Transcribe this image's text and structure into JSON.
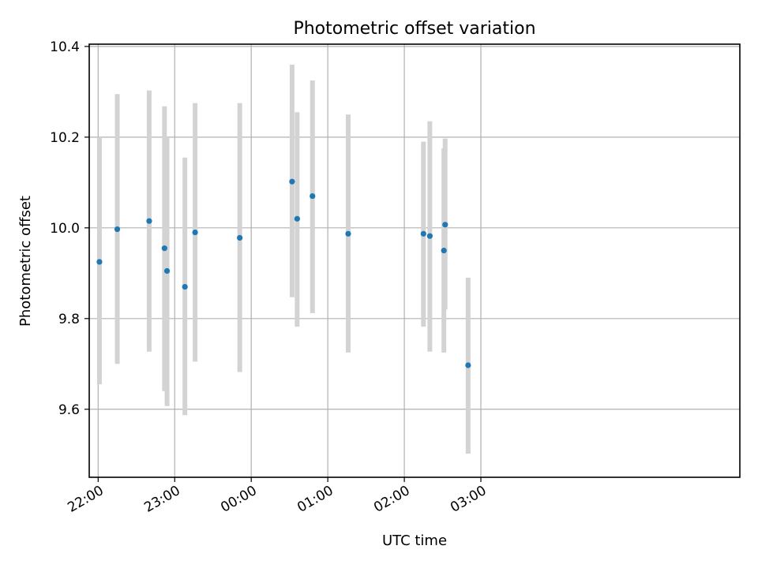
{
  "chart_data": {
    "type": "scatter",
    "title": "Photometric offset variation",
    "xlabel": "UTC time",
    "ylabel": "Photometric offset",
    "x_unit": "minutes_after_22:00",
    "xlim": [
      -7,
      503
    ],
    "ylim": [
      9.45,
      10.405
    ],
    "yticks": [
      9.6,
      9.8,
      10.0,
      10.2,
      10.4
    ],
    "ytick_labels": [
      "9.6",
      "9.8",
      "10.0",
      "10.2",
      "10.4"
    ],
    "xticks": [
      0,
      60,
      120,
      180,
      240,
      300
    ],
    "xtick_labels": [
      "22:00",
      "23:00",
      "00:00",
      "01:00",
      "02:00",
      "03:00"
    ],
    "grid": true,
    "colors": {
      "point": "#1f77b4",
      "errorbar": "#d3d3d3"
    },
    "points": [
      {
        "x": 1,
        "y": 9.925,
        "ylo": 9.655,
        "yhi": 10.2
      },
      {
        "x": 15,
        "y": 9.997,
        "ylo": 9.7,
        "yhi": 10.295
      },
      {
        "x": 40,
        "y": 10.015,
        "ylo": 9.727,
        "yhi": 10.303
      },
      {
        "x": 52,
        "y": 9.955,
        "ylo": 9.64,
        "yhi": 10.268
      },
      {
        "x": 54,
        "y": 9.905,
        "ylo": 9.607,
        "yhi": 10.198
      },
      {
        "x": 68,
        "y": 9.87,
        "ylo": 9.587,
        "yhi": 10.155
      },
      {
        "x": 76,
        "y": 9.99,
        "ylo": 9.705,
        "yhi": 10.275
      },
      {
        "x": 111,
        "y": 9.978,
        "ylo": 9.682,
        "yhi": 10.275
      },
      {
        "x": 152,
        "y": 10.102,
        "ylo": 9.847,
        "yhi": 10.36
      },
      {
        "x": 156,
        "y": 10.02,
        "ylo": 9.782,
        "yhi": 10.255
      },
      {
        "x": 168,
        "y": 10.07,
        "ylo": 9.812,
        "yhi": 10.325
      },
      {
        "x": 196,
        "y": 9.987,
        "ylo": 9.725,
        "yhi": 10.25
      },
      {
        "x": 255,
        "y": 9.987,
        "ylo": 9.782,
        "yhi": 10.19
      },
      {
        "x": 260,
        "y": 9.982,
        "ylo": 9.727,
        "yhi": 10.235
      },
      {
        "x": 271,
        "y": 9.95,
        "ylo": 9.725,
        "yhi": 10.175
      },
      {
        "x": 272,
        "y": 10.007,
        "ylo": 9.82,
        "yhi": 10.197
      },
      {
        "x": 290,
        "y": 9.697,
        "ylo": 9.502,
        "yhi": 9.89
      }
    ]
  }
}
